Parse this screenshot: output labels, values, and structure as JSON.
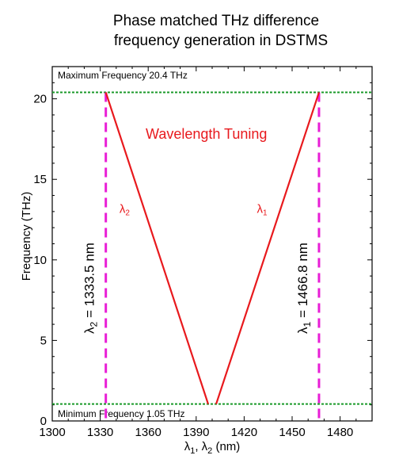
{
  "chart_data": {
    "type": "line",
    "title": "Phase matched THz difference frequency generation in DSTMS",
    "title_lines": [
      "Phase matched THz difference",
      "frequency generation in DSTMS"
    ],
    "xlabel": {
      "prefix": "λ",
      "sub1": "1",
      "mid": ", λ",
      "sub2": "2",
      "suffix": " (nm)"
    },
    "ylabel": "Frequency (THz)",
    "xlim": [
      1300,
      1500
    ],
    "ylim": [
      0,
      22
    ],
    "x_ticks": [
      1300,
      1330,
      1360,
      1390,
      1420,
      1450,
      1480
    ],
    "y_ticks": [
      0,
      5,
      10,
      15,
      20
    ],
    "grid": false,
    "series": [
      {
        "name": "λ2",
        "label": {
          "base": "λ",
          "sub": "2"
        },
        "color": "#e8191d",
        "x": [
          1333.5,
          1397.5
        ],
        "y": [
          20.4,
          1.05
        ]
      },
      {
        "name": "λ1",
        "label": {
          "base": "λ",
          "sub": "1"
        },
        "color": "#e8191d",
        "x": [
          1402.5,
          1466.8
        ],
        "y": [
          1.05,
          20.4
        ]
      }
    ],
    "reference_lines": {
      "horizontal": [
        {
          "value": 20.4,
          "label": "Maximum Frequency 20.4 THz",
          "color": "#1a9a2a"
        },
        {
          "value": 1.05,
          "label": "Minimum Frequency 1.05 THz",
          "color": "#1a9a2a"
        }
      ],
      "vertical": [
        {
          "value": 1333.5,
          "color": "#e81ed6",
          "label": {
            "base": "λ",
            "sub": "2",
            "rest": " = 1333.5 nm"
          }
        },
        {
          "value": 1466.8,
          "color": "#e81ed6",
          "label": {
            "base": "λ",
            "sub": "1",
            "rest": " = 1466.8 nm"
          }
        }
      ]
    },
    "annotation": "Wavelength Tuning",
    "accent_color": "#e8191d"
  }
}
